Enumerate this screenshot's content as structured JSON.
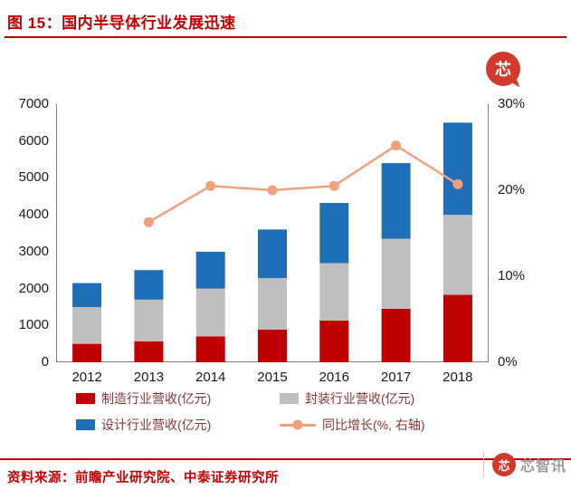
{
  "header": {
    "title": "图 15：国内半导体行业发展迅速"
  },
  "footer": {
    "source": "资料来源：前瞻产业研究院、中泰证券研究所"
  },
  "watermark": {
    "label": "芯智讯",
    "logo_char": "芯"
  },
  "colors": {
    "accent": "#C00000",
    "legend_text": "#8A3535",
    "axis_text": "#1A1A1A",
    "axis_line": "#808080",
    "watermark_red": "#D2382C",
    "watermark_gray": "#9B9B9B"
  },
  "chart_data": {
    "type": "bar",
    "subtype": "stacked-bars-with-line-overlay",
    "title": "国内半导体行业发展迅速",
    "categories": [
      "2012",
      "2013",
      "2014",
      "2015",
      "2016",
      "2017",
      "2018"
    ],
    "series": [
      {
        "name": "制造行业营收(亿元)",
        "type": "bar",
        "axis": "left",
        "color": "#C00000",
        "values": [
          500,
          570,
          700,
          890,
          1130,
          1450,
          1830
        ]
      },
      {
        "name": "封装行业营收(亿元)",
        "type": "bar",
        "axis": "left",
        "color": "#BFBFBF",
        "values": [
          1000,
          1130,
          1300,
          1390,
          1560,
          1900,
          2170
        ]
      },
      {
        "name": "设计行业营收(亿元)",
        "type": "bar",
        "axis": "left",
        "color": "#1E6FB8",
        "values": [
          650,
          800,
          1000,
          1320,
          1630,
          2050,
          2500
        ]
      },
      {
        "name": "同比增长(%, 右轴)",
        "type": "line",
        "axis": "right",
        "color": "#F2A17C",
        "values": [
          null,
          16.3,
          20.5,
          20.0,
          20.5,
          25.2,
          20.7
        ]
      }
    ],
    "left_axis": {
      "min": 0,
      "max": 7000,
      "tick_step": 1000,
      "ticks": [
        "0",
        "1000",
        "2000",
        "3000",
        "4000",
        "5000",
        "6000",
        "7000"
      ]
    },
    "right_axis": {
      "min": 0,
      "max": 30,
      "ticks": [
        "0%",
        "10%",
        "20%",
        "30%"
      ]
    },
    "grid": false,
    "legend_position": "bottom"
  }
}
